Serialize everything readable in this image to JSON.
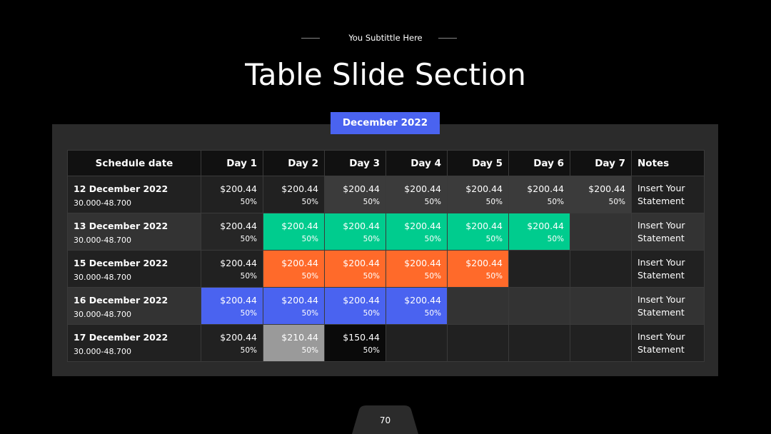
{
  "header": {
    "subtitle": "You Subtittle Here",
    "title": "Table Slide Section"
  },
  "month": "December 2022",
  "table": {
    "columns": [
      "Schedule date",
      "Day 1",
      "Day 2",
      "Day 3",
      "Day 4",
      "Day 5",
      "Day 6",
      "Day 7",
      "Notes"
    ],
    "rows": [
      {
        "date": "12 December 2022",
        "range": "30.000-48.700",
        "notes": "Insert Your Statement",
        "cells": [
          {
            "amount": "$200.44",
            "percent": "50%"
          },
          {
            "amount": "$200.44",
            "percent": "50%"
          },
          {
            "amount": "$200.44",
            "percent": "50%",
            "color": "#3b3b3b"
          },
          {
            "amount": "$200.44",
            "percent": "50%",
            "color": "#3b3b3b"
          },
          {
            "amount": "$200.44",
            "percent": "50%",
            "color": "#3b3b3b"
          },
          {
            "amount": "$200.44",
            "percent": "50%",
            "color": "#3b3b3b"
          },
          {
            "amount": "$200.44",
            "percent": "50%",
            "color": "#3b3b3b"
          }
        ]
      },
      {
        "date": "13 December 2022",
        "range": "30.000-48.700",
        "notes": "Insert Your Statement",
        "cells": [
          {
            "amount": "$200.44",
            "percent": "50%",
            "color": "#262626"
          },
          {
            "amount": "$200.44",
            "percent": "50%",
            "color": "#00cc8e"
          },
          {
            "amount": "$200.44",
            "percent": "50%",
            "color": "#00cc8e"
          },
          {
            "amount": "$200.44",
            "percent": "50%",
            "color": "#00cc8e"
          },
          {
            "amount": "$200.44",
            "percent": "50%",
            "color": "#00cc8e"
          },
          {
            "amount": "$200.44",
            "percent": "50%",
            "color": "#00cc8e"
          },
          null
        ]
      },
      {
        "date": "15 December 2022",
        "range": "30.000-48.700",
        "notes": "Insert Your Statement",
        "cells": [
          {
            "amount": "$200.44",
            "percent": "50%"
          },
          {
            "amount": "$200.44",
            "percent": "50%",
            "color": "#ff6a2a"
          },
          {
            "amount": "$200.44",
            "percent": "50%",
            "color": "#ff6a2a"
          },
          {
            "amount": "$200.44",
            "percent": "50%",
            "color": "#ff6a2a"
          },
          {
            "amount": "$200.44",
            "percent": "50%",
            "color": "#ff6a2a"
          },
          null,
          null
        ]
      },
      {
        "date": "16 December 2022",
        "range": "30.000-48.700",
        "notes": "Insert Your Statement",
        "cells": [
          {
            "amount": "$200.44",
            "percent": "50%",
            "color": "#4a63f0"
          },
          {
            "amount": "$200.44",
            "percent": "50%",
            "color": "#4a63f0"
          },
          {
            "amount": "$200.44",
            "percent": "50%",
            "color": "#4a63f0"
          },
          {
            "amount": "$200.44",
            "percent": "50%",
            "color": "#4a63f0"
          },
          null,
          null,
          null
        ]
      },
      {
        "date": "17 December 2022",
        "range": "30.000-48.700",
        "notes": "Insert Your Statement",
        "cells": [
          {
            "amount": "$200.44",
            "percent": "50%"
          },
          {
            "amount": "$210.44",
            "percent": "50%",
            "color": "#9a9a9a"
          },
          {
            "amount": "$150.44",
            "percent": "50%",
            "color": "#0a0a0a"
          },
          null,
          null,
          null,
          null
        ]
      }
    ]
  },
  "page_number": "70"
}
